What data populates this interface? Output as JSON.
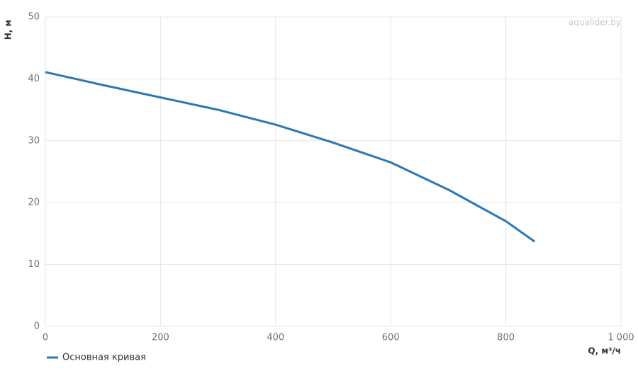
{
  "chart_data": {
    "type": "line",
    "watermark": "aqualider.by",
    "x_label": "Q, м³/ч",
    "y_label": "H, м",
    "x": [
      0,
      100,
      200,
      300,
      400,
      500,
      600,
      700,
      800,
      850
    ],
    "series": [
      {
        "name": "Основная кривая",
        "color": "#2a78b4",
        "values": [
          41.1,
          39.0,
          37.0,
          35.0,
          32.6,
          29.7,
          26.5,
          22.1,
          17.0,
          13.7
        ]
      }
    ],
    "xlim": [
      0,
      1000
    ],
    "xticks": [
      0,
      200,
      400,
      600,
      800,
      {
        "value": 1000,
        "label": "1 000"
      }
    ],
    "ylim": [
      0,
      50
    ],
    "yticks": [
      0,
      10,
      20,
      30,
      40,
      50
    ],
    "grid": true
  }
}
